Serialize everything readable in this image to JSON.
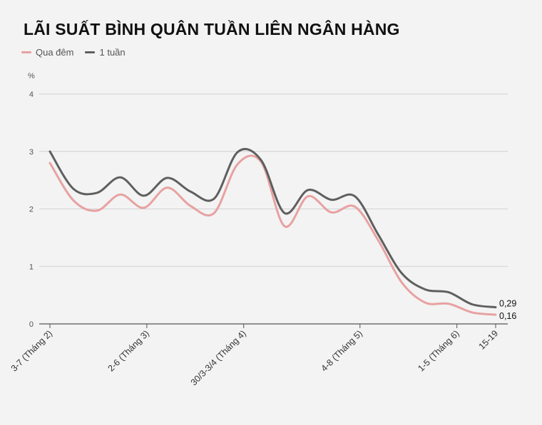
{
  "chart_data": {
    "type": "line",
    "title": "LÃI SUẤT BÌNH QUÂN TUẦN LIÊN NGÂN HÀNG",
    "ylabel": "%",
    "xlabel": "",
    "ylim": [
      0,
      4
    ],
    "yticks": [
      "0",
      "1",
      "2",
      "3",
      "4"
    ],
    "grid": true,
    "legend_position": "top-left",
    "tick_labels": [
      {
        "index": 0,
        "label": "3-7 (Tháng 2)"
      },
      {
        "index": 5,
        "label": "2-6 (Tháng 3)"
      },
      {
        "index": 10,
        "label": "30/3-3/4 (Tháng 4)"
      },
      {
        "index": 16,
        "label": "4-8 (Tháng 5)"
      },
      {
        "index": 21,
        "label": "1-5 (Tháng 6)"
      },
      {
        "index": 23,
        "label": "15-19"
      }
    ],
    "point_count": 24,
    "series": [
      {
        "name": "Qua đêm",
        "color": "#e8a1a1",
        "values": [
          2.8,
          2.15,
          1.97,
          2.25,
          2.02,
          2.37,
          2.05,
          1.93,
          2.78,
          2.82,
          1.7,
          2.22,
          1.94,
          2.04,
          1.45,
          0.72,
          0.37,
          0.35,
          0.2,
          0.16
        ],
        "x": [
          0,
          1,
          2,
          3,
          4,
          5,
          6,
          7,
          8,
          9,
          10,
          11,
          12,
          13,
          14,
          15,
          16,
          17,
          18,
          19
        ]
      },
      {
        "name": "1 tuần",
        "color": "#5f5f5f",
        "values": [
          3.0,
          2.35,
          2.28,
          2.55,
          2.23,
          2.54,
          2.3,
          2.18,
          2.99,
          2.85,
          1.93,
          2.33,
          2.16,
          2.22,
          1.55,
          0.88,
          0.6,
          0.55,
          0.34,
          0.29
        ],
        "x": [
          0,
          1,
          2,
          3,
          4,
          5,
          6,
          7,
          8,
          9,
          10,
          11,
          12,
          13,
          14,
          15,
          16,
          17,
          18,
          19
        ]
      }
    ],
    "end_labels": [
      "0,29",
      "0,16"
    ]
  }
}
